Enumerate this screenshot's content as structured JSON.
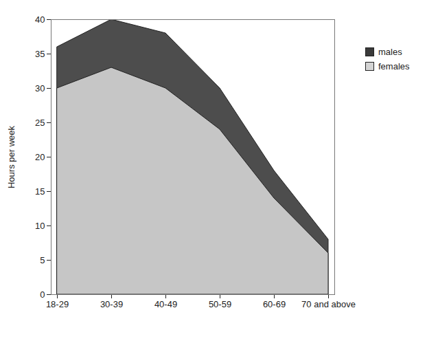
{
  "chart_data": {
    "type": "area",
    "categories": [
      "18-29",
      "30-39",
      "40-49",
      "50-59",
      "60-69",
      "70 and above"
    ],
    "series": [
      {
        "name": "males",
        "color": "#3a3a3a",
        "values": [
          36,
          40,
          38,
          30,
          18,
          8
        ]
      },
      {
        "name": "females",
        "color": "#d4d4d4",
        "values": [
          30,
          33,
          30,
          24,
          14,
          6
        ]
      }
    ],
    "y_label": "Hours per week",
    "ylim": [
      0,
      40
    ],
    "yticks": [
      0,
      5,
      10,
      15,
      20,
      25,
      30,
      35,
      40
    ],
    "grid": false,
    "legend": "right"
  }
}
